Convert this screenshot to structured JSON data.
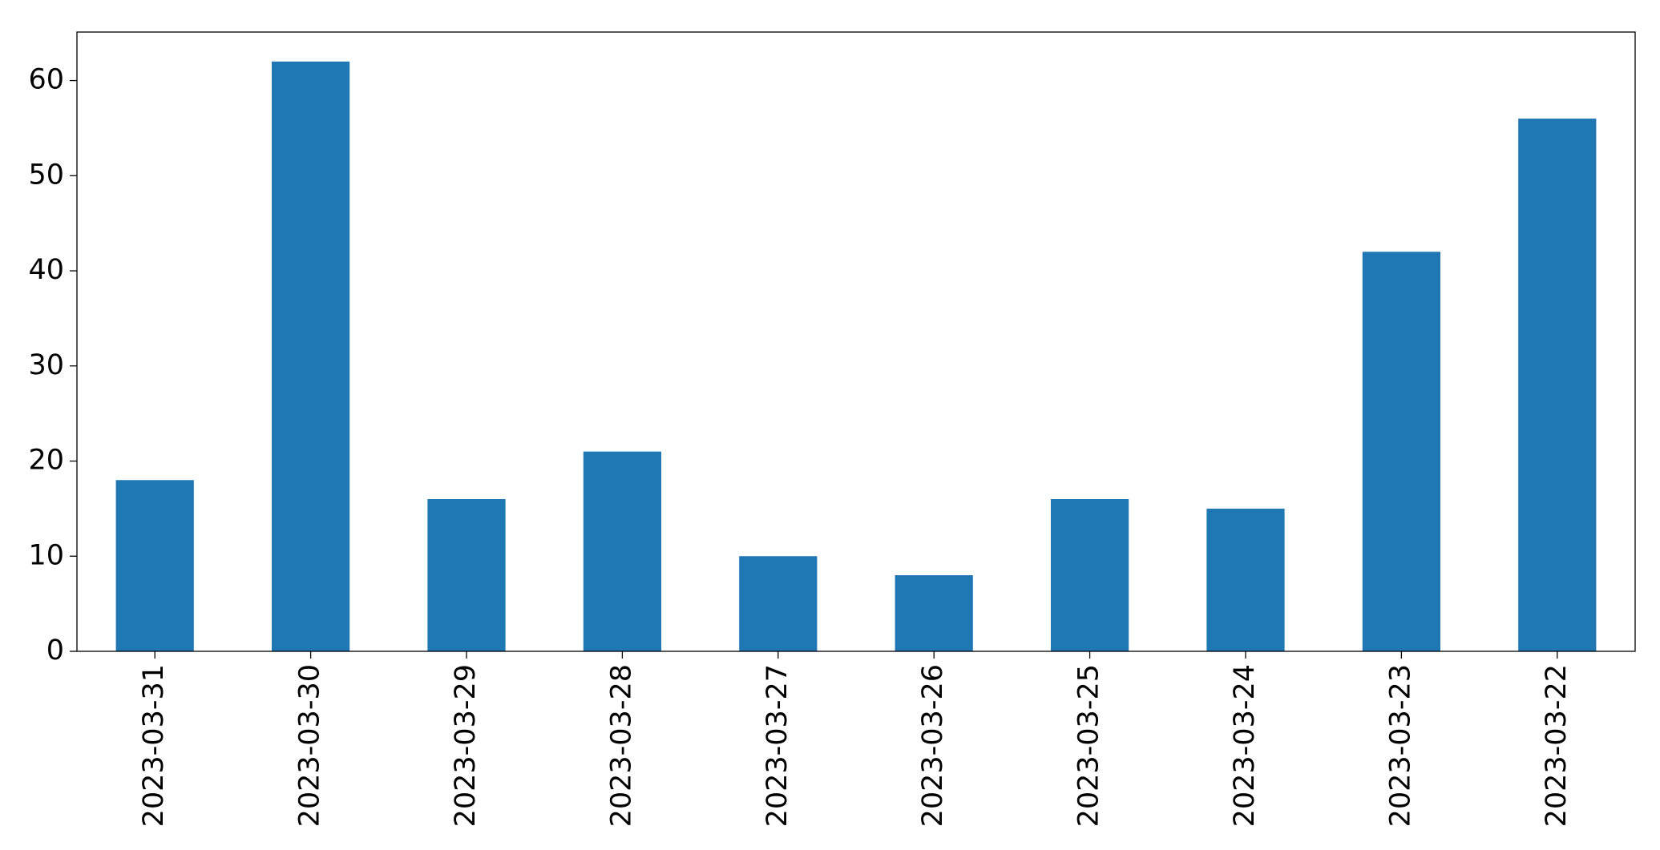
{
  "chart_data": {
    "type": "bar",
    "categories": [
      "2023-03-31",
      "2023-03-30",
      "2023-03-29",
      "2023-03-28",
      "2023-03-27",
      "2023-03-26",
      "2023-03-25",
      "2023-03-24",
      "2023-03-23",
      "2023-03-22"
    ],
    "values": [
      18,
      62,
      16,
      21,
      10,
      8,
      16,
      15,
      42,
      56
    ],
    "color": "#1f77b4",
    "ylim": [
      0,
      65.1
    ],
    "yticks": [
      0,
      10,
      20,
      30,
      40,
      50,
      60
    ],
    "grid": false
  }
}
